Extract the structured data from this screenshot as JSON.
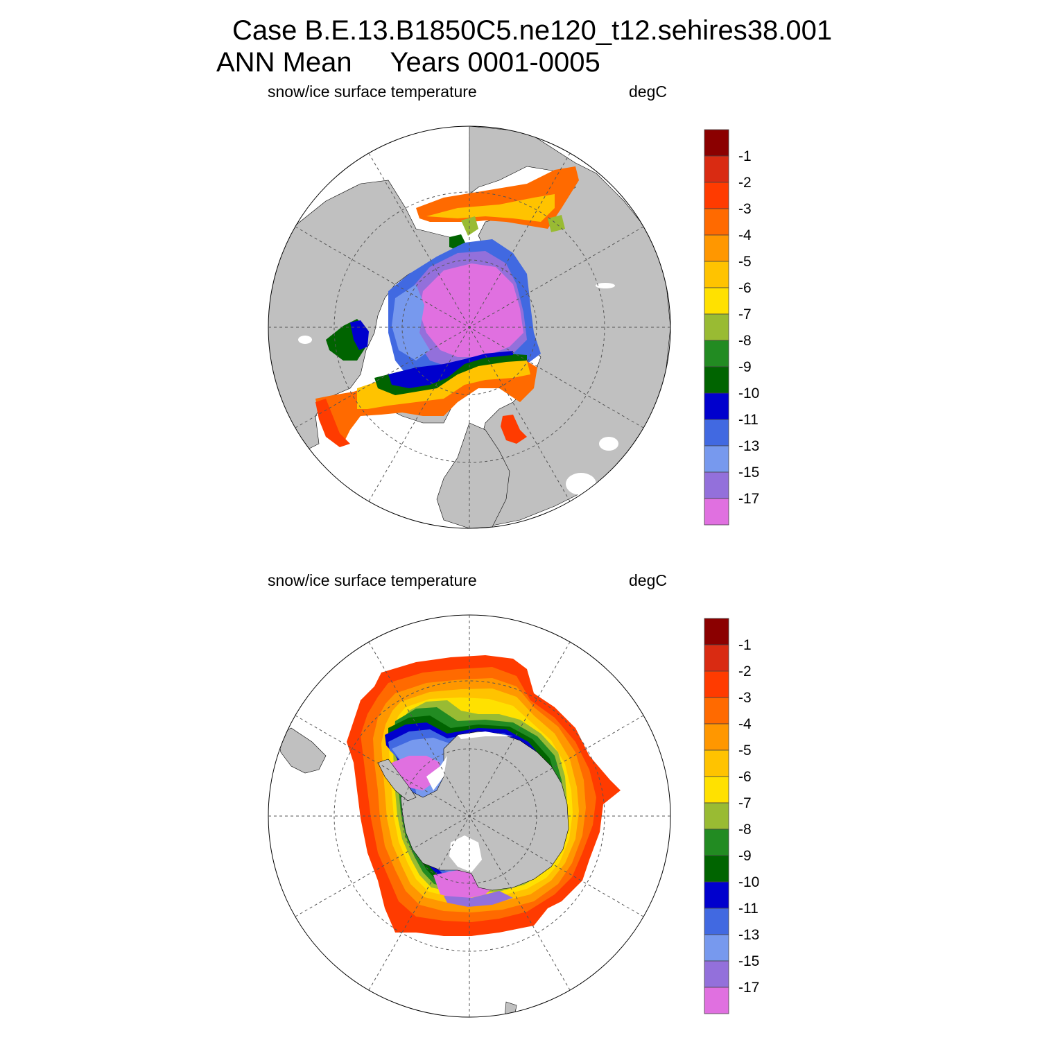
{
  "header": {
    "title_line1": "Case B.E.13.B1850C5.ne120_t12.sehires38.001",
    "title_line2": "ANN Mean     Years 0001-0005"
  },
  "colors": {
    "land": "#c0c0c0",
    "ocean": "#ffffff",
    "levels": [
      "#8b0000",
      "#d92b12",
      "#ff3b00",
      "#ff6a00",
      "#ff9700",
      "#ffc300",
      "#ffe100",
      "#99bb33",
      "#228b22",
      "#006400",
      "#0000cd",
      "#4169e1",
      "#7799ee",
      "#9370db",
      "#e070e0"
    ]
  },
  "panels": [
    {
      "id": "north",
      "left_label": "snow/ice surface temperature",
      "right_label": "degC",
      "colorbar_ticks": [
        "-1",
        "-2",
        "-3",
        "-4",
        "-5",
        "-6",
        "-7",
        "-8",
        "-9",
        "-10",
        "-11",
        "-13",
        "-15",
        "-17"
      ]
    },
    {
      "id": "south",
      "left_label": "snow/ice surface temperature",
      "right_label": "degC",
      "colorbar_ticks": [
        "-1",
        "-2",
        "-3",
        "-4",
        "-5",
        "-6",
        "-7",
        "-8",
        "-9",
        "-10",
        "-11",
        "-13",
        "-15",
        "-17"
      ]
    }
  ]
}
